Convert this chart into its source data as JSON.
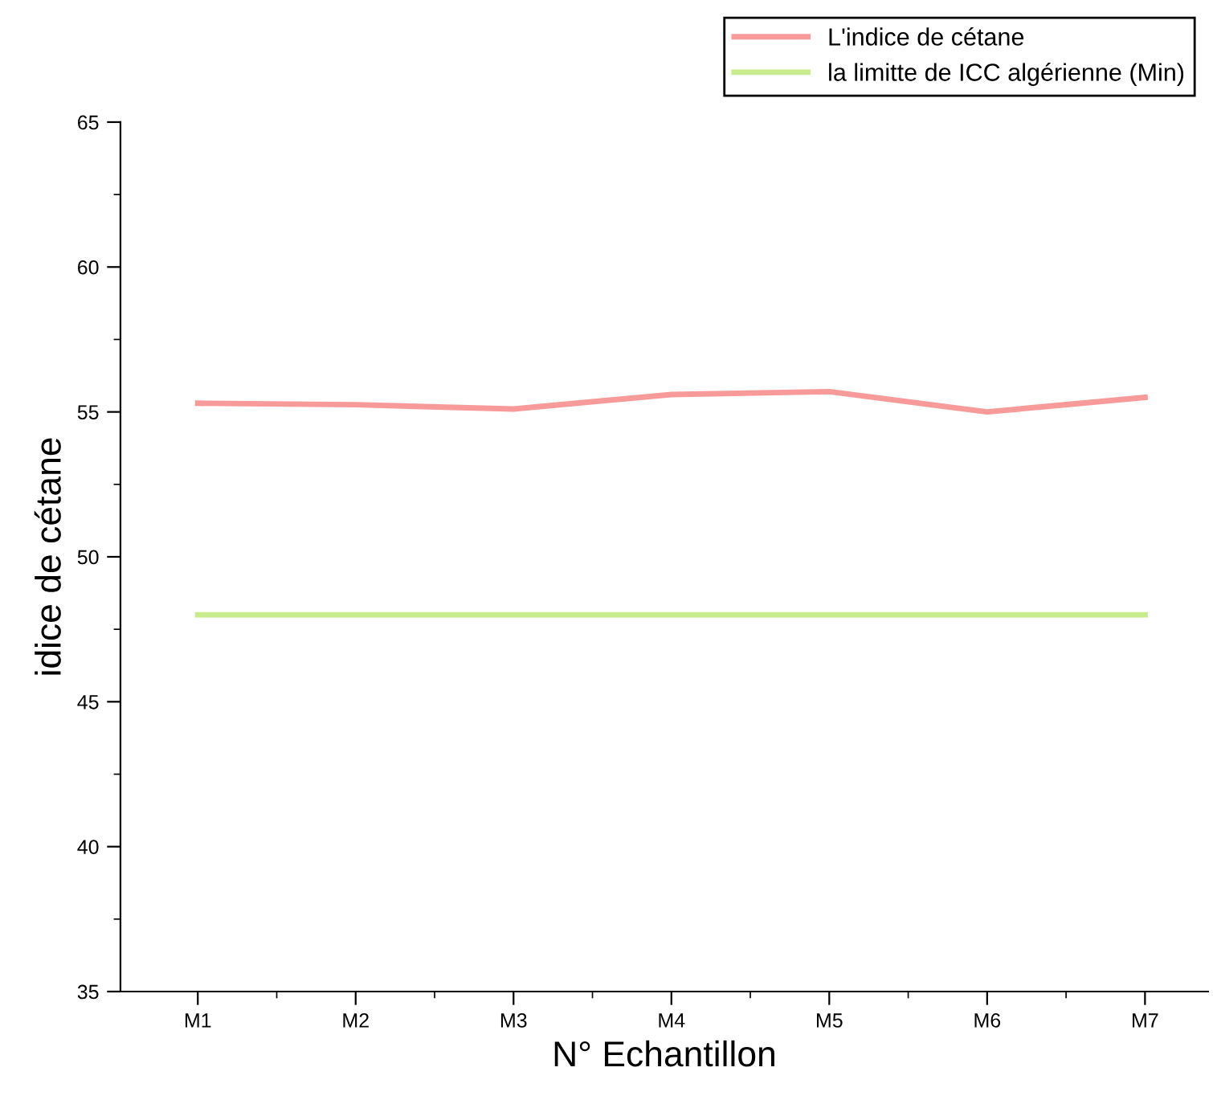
{
  "chart_data": {
    "type": "line",
    "xlabel": "N° Echantillon",
    "ylabel": "idice de cétane",
    "categories": [
      "M1",
      "M2",
      "M3",
      "M4",
      "M5",
      "M6",
      "M7"
    ],
    "series": [
      {
        "name": "L'indice de cétane",
        "color": "#f89a9a",
        "values": [
          55.3,
          55.25,
          55.1,
          55.6,
          55.7,
          55.0,
          55.5
        ]
      },
      {
        "name": "la limitte de ICC algérienne (Min)",
        "color": "#c8ec8c",
        "values": [
          48,
          48,
          48,
          48,
          48,
          48,
          48
        ]
      }
    ],
    "ylim": [
      35,
      65
    ],
    "yticks": [
      35,
      40,
      45,
      50,
      55,
      60,
      65
    ],
    "grid": false,
    "legend": "top right",
    "marker": "none",
    "line_style": "solid"
  }
}
